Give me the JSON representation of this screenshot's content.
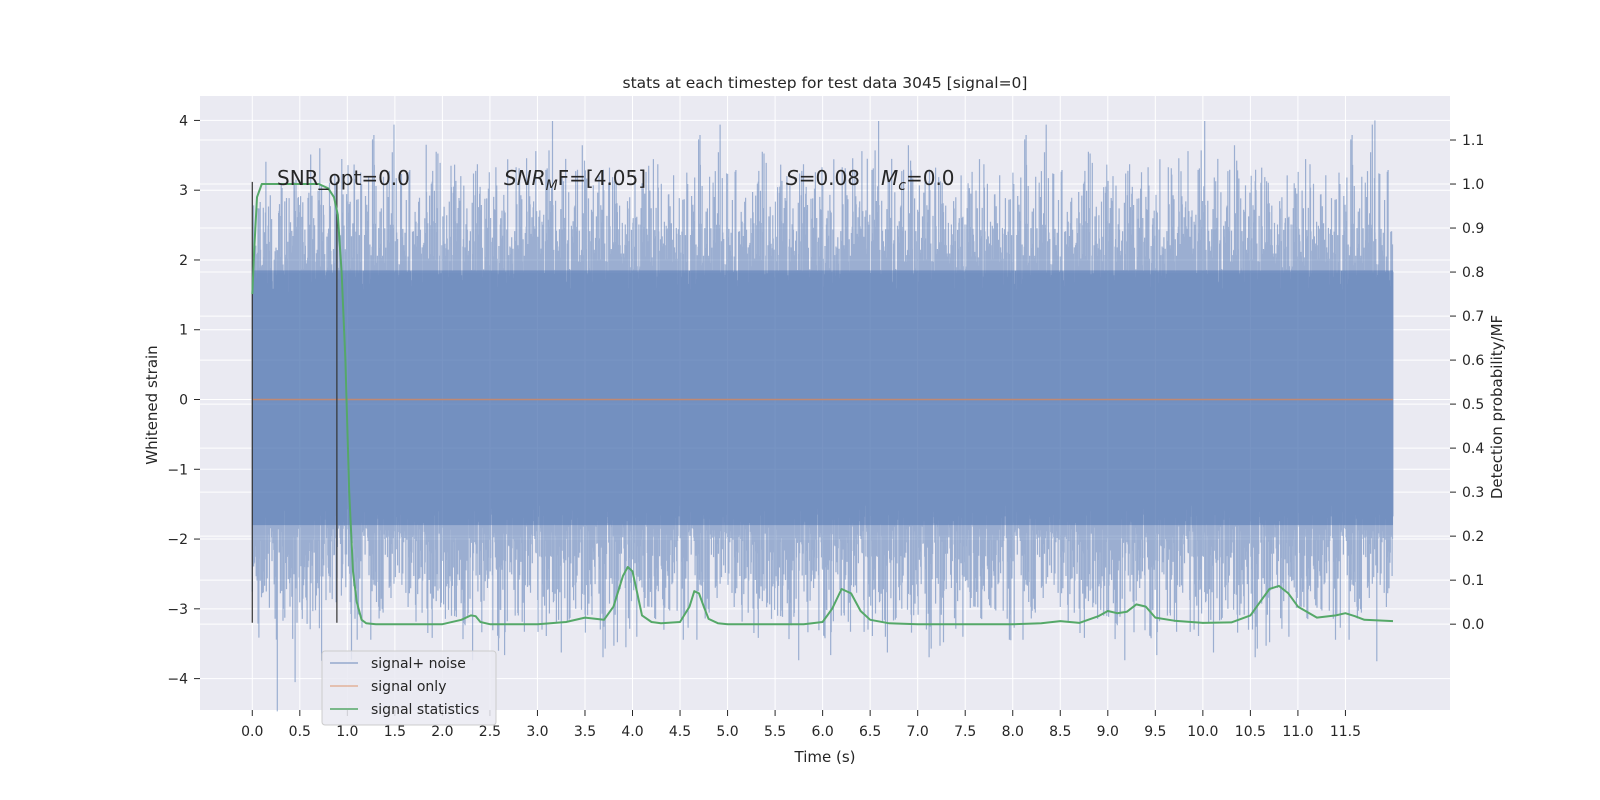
{
  "chart_data": {
    "type": "line",
    "title": "stats at each timestep for test data 3045 [signal=0]",
    "xlabel": "Time (s)",
    "ylabel": "Whitened strain",
    "y2label": "Detection probability/MF",
    "xlim": [
      -0.55,
      12.6
    ],
    "ylim": [
      -4.45,
      4.35
    ],
    "y2lim": [
      -0.195,
      1.2
    ],
    "grid": true,
    "x_ticks": [
      "0.0",
      "0.5",
      "1.0",
      "1.5",
      "2.0",
      "2.5",
      "3.0",
      "3.5",
      "4.0",
      "4.5",
      "5.0",
      "5.5",
      "6.0",
      "6.5",
      "7.0",
      "7.5",
      "8.0",
      "8.5",
      "9.0",
      "9.5",
      "10.0",
      "10.5",
      "11.0",
      "11.5"
    ],
    "y_ticks": [
      "4",
      "3",
      "2",
      "1",
      "0",
      "−1",
      "−2",
      "−3",
      "−4"
    ],
    "y2_ticks": [
      "1.1",
      "1.0",
      "0.9",
      "0.8",
      "0.7",
      "0.6",
      "0.5",
      "0.4",
      "0.3",
      "0.2",
      "0.1",
      "0.0"
    ],
    "annotations": {
      "snr_opt": "SNR_opt=0.0",
      "snr_mf_base": "SNR",
      "snr_mf_sub": "M",
      "snr_mf_rest": "F=[4.05]",
      "s_italic": "S",
      "s_rest": "=0.08",
      "mc_base": "M",
      "mc_sub": "c",
      "mc_rest": "=0.0"
    },
    "vlines_x": [
      0.0,
      0.89
    ],
    "vline_range": [
      -3.2,
      3.12
    ],
    "series": [
      {
        "name": "signal+ noise",
        "color": "#4c72b0",
        "x_range": [
          0.0,
          12.0
        ],
        "envelope_outer": [
          -2.4,
          2.4
        ],
        "envelope_dense": [
          -1.8,
          1.85
        ],
        "notable_spikes": [
          {
            "x": 0.46,
            "y": 3.15
          },
          {
            "x": 0.71,
            "y": 3.6
          },
          {
            "x": 1.83,
            "y": 3.65
          },
          {
            "x": 2.09,
            "y": 3.35
          },
          {
            "x": 4.17,
            "y": 3.35
          },
          {
            "x": 6.47,
            "y": 3.45
          },
          {
            "x": 11.81,
            "y": 4.0
          },
          {
            "x": 0.45,
            "y": -4.05
          },
          {
            "x": 2.59,
            "y": -3.6
          },
          {
            "x": 3.93,
            "y": -3.55
          },
          {
            "x": 4.33,
            "y": -3.3
          },
          {
            "x": 6.66,
            "y": -3.4
          },
          {
            "x": 7.98,
            "y": -3.45
          },
          {
            "x": 11.83,
            "y": -3.75
          },
          {
            "x": 10.48,
            "y": -3.3
          }
        ]
      },
      {
        "name": "signal only",
        "color": "#dd8452",
        "x": [
          0.0,
          12.0
        ],
        "y": [
          0.0,
          0.0
        ]
      },
      {
        "name": "signal statistics",
        "color": "#55a868",
        "axis": "right",
        "x": [
          0.0,
          0.02,
          0.05,
          0.1,
          0.15,
          0.2,
          0.3,
          0.5,
          0.7,
          0.8,
          0.86,
          0.9,
          0.94,
          0.98,
          1.02,
          1.06,
          1.1,
          1.15,
          1.2,
          1.3,
          1.5,
          2.0,
          2.2,
          2.3,
          2.35,
          2.4,
          2.5,
          2.7,
          3.0,
          3.3,
          3.5,
          3.7,
          3.8,
          3.9,
          3.95,
          4.0,
          4.05,
          4.1,
          4.2,
          4.3,
          4.5,
          4.6,
          4.65,
          4.7,
          4.75,
          4.8,
          4.9,
          5.0,
          5.2,
          5.5,
          5.8,
          6.0,
          6.1,
          6.2,
          6.3,
          6.4,
          6.5,
          6.7,
          7.0,
          7.5,
          8.0,
          8.3,
          8.5,
          8.7,
          8.9,
          9.0,
          9.1,
          9.2,
          9.3,
          9.4,
          9.5,
          9.7,
          10.0,
          10.3,
          10.5,
          10.6,
          10.7,
          10.8,
          10.9,
          11.0,
          11.2,
          11.4,
          11.5,
          11.6,
          11.7,
          12.0
        ],
        "y": [
          0.75,
          0.85,
          0.97,
          1.0,
          1.0,
          1.0,
          1.0,
          1.0,
          1.0,
          0.99,
          0.97,
          0.93,
          0.8,
          0.6,
          0.3,
          0.12,
          0.05,
          0.01,
          0.002,
          0.0,
          0.0,
          0.0,
          0.01,
          0.02,
          0.018,
          0.005,
          0.0,
          0.0,
          0.0,
          0.005,
          0.015,
          0.01,
          0.04,
          0.11,
          0.13,
          0.12,
          0.07,
          0.02,
          0.005,
          0.002,
          0.005,
          0.04,
          0.075,
          0.07,
          0.04,
          0.012,
          0.002,
          0.0,
          0.0,
          0.0,
          0.0,
          0.005,
          0.035,
          0.08,
          0.07,
          0.03,
          0.01,
          0.002,
          0.0,
          0.0,
          0.0,
          0.002,
          0.007,
          0.003,
          0.018,
          0.03,
          0.025,
          0.028,
          0.045,
          0.04,
          0.015,
          0.008,
          0.003,
          0.004,
          0.02,
          0.05,
          0.08,
          0.087,
          0.07,
          0.04,
          0.015,
          0.02,
          0.025,
          0.018,
          0.01,
          0.007
        ]
      }
    ],
    "legend_position": "lower-left",
    "legend_entries": [
      "signal+ noise",
      "signal only",
      "signal statistics"
    ],
    "colors": {
      "background": "#eaeaf2",
      "grid": "#ffffff",
      "noise": "#4c72b0",
      "signal": "#dd8452",
      "stats": "#55a868",
      "vline": "#333333"
    }
  }
}
